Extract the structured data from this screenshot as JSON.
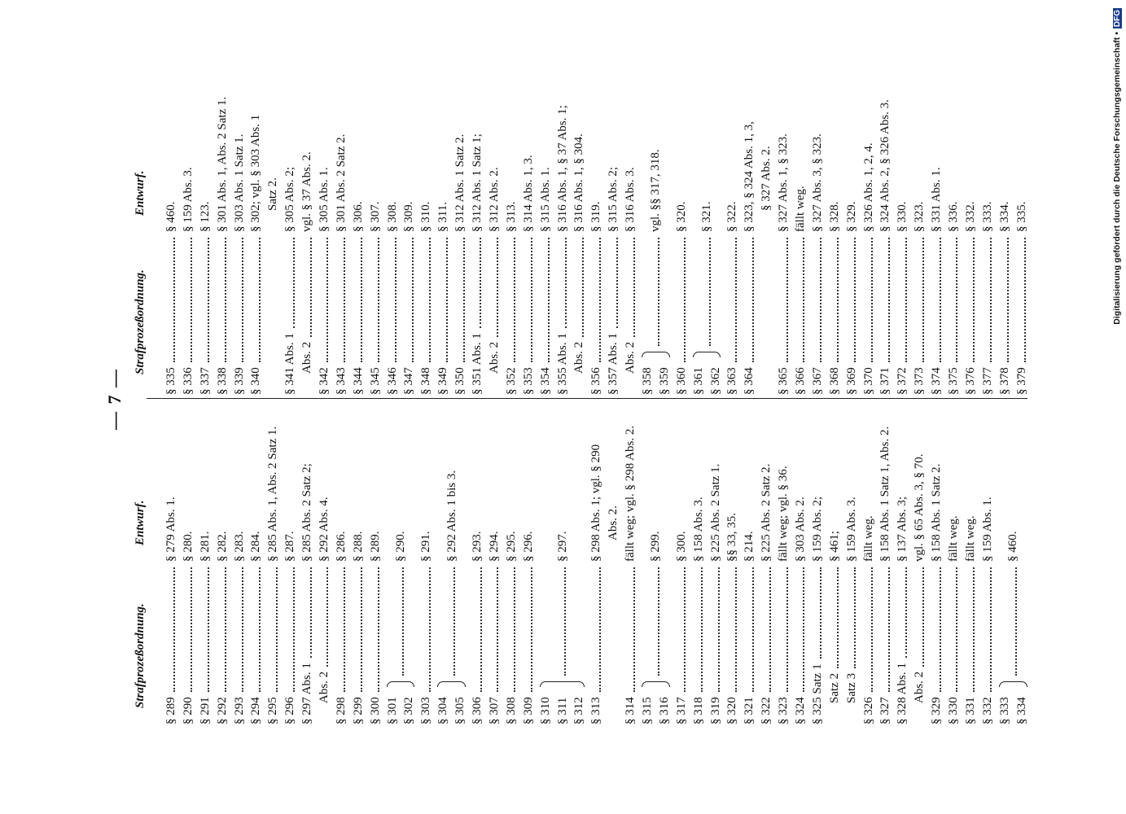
{
  "page_number": "— 7 —",
  "tables": [
    {
      "headers": [
        "Strafprozeßordnung.",
        "Entwurf."
      ],
      "rows": [
        {
          "spo": "§ 289",
          "entwurf": "§ 279 Abs. 1."
        },
        {
          "spo": "§ 290",
          "entwurf": "§ 280."
        },
        {
          "spo": "§ 291",
          "entwurf": "§ 281."
        },
        {
          "spo": "§ 292",
          "entwurf": "§ 282."
        },
        {
          "spo": "§ 293",
          "entwurf": "§ 283."
        },
        {
          "spo": "§ 294",
          "entwurf": "§ 284."
        },
        {
          "spo": "§ 295",
          "entwurf": "§ 285 Abs. 1, Abs. 2 Satz 1."
        },
        {
          "spo": "§ 296",
          "entwurf": "§ 287."
        },
        {
          "spo": "§ 297 Abs. 1",
          "entwurf": "§ 285 Abs. 2 Satz 2;"
        },
        {
          "spo": "Abs. 2",
          "entwurf": "§ 292 Abs. 4."
        },
        {
          "spo": "§ 298",
          "entwurf": "§ 286."
        },
        {
          "spo": "§ 299",
          "entwurf": "§ 288."
        },
        {
          "spo": "§ 300",
          "entwurf": "§ 289."
        },
        {
          "spo": [
            "§ 301",
            "§ 302"
          ],
          "entwurf": "§ 290."
        },
        {
          "spo": "§ 303",
          "entwurf": "§ 291."
        },
        {
          "spo": [
            "§ 304",
            "§ 305"
          ],
          "entwurf": "§ 292 Abs. 1 bis 3."
        },
        {
          "spo": "§ 306",
          "entwurf": "§ 293."
        },
        {
          "spo": "§ 307",
          "entwurf": "§ 294."
        },
        {
          "spo": "§ 308",
          "entwurf": "§ 295."
        },
        {
          "spo": "§ 309",
          "entwurf": "§ 296."
        },
        {
          "spo": [
            "§ 310",
            "§ 311",
            "§ 312"
          ],
          "entwurf": "§ 297."
        },
        {
          "spo": "§ 313",
          "entwurf": [
            "§ 298 Abs. 1; vgl. § 290",
            "Abs. 2."
          ]
        },
        {
          "spo": "§ 314",
          "entwurf": "fällt weg; vgl. § 298 Abs. 2."
        },
        {
          "spo": [
            "§ 315",
            "§ 316"
          ],
          "entwurf": "§ 299."
        },
        {
          "spo": "§ 317",
          "entwurf": "§ 300."
        },
        {
          "spo": "§ 318",
          "entwurf": "§ 158 Abs. 3."
        },
        {
          "spo": "§ 319",
          "entwurf": "§ 225 Abs. 2 Satz 1."
        },
        {
          "spo": "§ 320",
          "entwurf": "§§ 33, 35."
        },
        {
          "spo": "§ 321",
          "entwurf": "§ 214."
        },
        {
          "spo": "§ 322",
          "entwurf": "§ 225 Abs. 2 Satz 2."
        },
        {
          "spo": "§ 323",
          "entwurf": "fällt weg; vgl. § 36."
        },
        {
          "spo": "§ 324",
          "entwurf": "§ 303 Abs. 2."
        },
        {
          "spo": "§ 325 Satz 1",
          "entwurf": "§ 159 Abs. 2;"
        },
        {
          "spo": "Satz 2",
          "entwurf": "§ 461;"
        },
        {
          "spo": "Satz 3",
          "entwurf": "§ 159 Abs. 3."
        },
        {
          "spo": "§ 326",
          "entwurf": "fällt weg."
        },
        {
          "spo": "§ 327",
          "entwurf": "§ 158 Abs. 1 Satz 1, Abs. 2."
        },
        {
          "spo": "§ 328 Abs. 1",
          "entwurf": "§ 137 Abs. 3;"
        },
        {
          "spo": "Abs. 2",
          "entwurf": "vgl. § 65 Abs. 3, § 70."
        },
        {
          "spo": "§ 329",
          "entwurf": "§ 158 Abs. 1 Satz 2."
        },
        {
          "spo": "§ 330",
          "entwurf": "fällt weg."
        },
        {
          "spo": "§ 331",
          "entwurf": "fällt weg."
        },
        {
          "spo": "§ 332",
          "entwurf": "§ 159 Abs. 1."
        },
        {
          "spo": [
            "§ 333",
            "§ 334"
          ],
          "entwurf": "§ 460."
        }
      ]
    },
    {
      "headers": [
        "Strafprozeßordnung.",
        "Entwurf."
      ],
      "rows": [
        {
          "spo": "§ 335",
          "entwurf": "§ 460."
        },
        {
          "spo": "§ 336",
          "entwurf": "§ 159 Abs. 3."
        },
        {
          "spo": "§ 337",
          "entwurf": "§ 123."
        },
        {
          "spo": "§ 338",
          "entwurf": "§ 301 Abs. 1, Abs. 2 Satz 1."
        },
        {
          "spo": "§ 339",
          "entwurf": "§ 303 Abs. 1 Satz 1."
        },
        {
          "spo": "§ 340",
          "entwurf": [
            "§ 302; vgl. § 303 Abs. 1",
            "Satz 2."
          ]
        },
        {
          "spo": "§ 341 Abs. 1",
          "entwurf": "§ 305 Abs. 2;"
        },
        {
          "spo": "Abs. 2",
          "entwurf": "vgl. § 37 Abs. 2."
        },
        {
          "spo": "§ 342",
          "entwurf": "§ 305 Abs. 1."
        },
        {
          "spo": "§ 343",
          "entwurf": "§ 301 Abs. 2 Satz 2."
        },
        {
          "spo": "§ 344",
          "entwurf": "§ 306."
        },
        {
          "spo": "§ 345",
          "entwurf": "§ 307."
        },
        {
          "spo": "§ 346",
          "entwurf": "§ 308."
        },
        {
          "spo": "§ 347",
          "entwurf": "§ 309."
        },
        {
          "spo": "§ 348",
          "entwurf": "§ 310."
        },
        {
          "spo": "§ 349",
          "entwurf": "§ 311."
        },
        {
          "spo": "§ 350",
          "entwurf": "§ 312 Abs. 1 Satz 2."
        },
        {
          "spo": "§ 351 Abs. 1",
          "entwurf": "§ 312 Abs. 1 Satz 1;"
        },
        {
          "spo": "Abs. 2",
          "entwurf": "§ 312 Abs. 2."
        },
        {
          "spo": "§ 352",
          "entwurf": "§ 313."
        },
        {
          "spo": "§ 353",
          "entwurf": "§ 314 Abs. 1, 3."
        },
        {
          "spo": "§ 354",
          "entwurf": "§ 315 Abs. 1."
        },
        {
          "spo": "§ 355 Abs. 1",
          "entwurf": "§ 316 Abs. 1, § 37 Abs. 1;"
        },
        {
          "spo": "Abs. 2",
          "entwurf": "§ 316 Abs. 1, § 304."
        },
        {
          "spo": "§ 356",
          "entwurf": "§ 319."
        },
        {
          "spo": "§ 357 Abs. 1",
          "entwurf": "§ 315 Abs. 2;"
        },
        {
          "spo": "Abs. 2",
          "entwurf": "§ 316 Abs. 3."
        },
        {
          "spo": [
            "§ 358",
            "§ 359"
          ],
          "entwurf": "vgl. §§ 317, 318."
        },
        {
          "spo": "§ 360",
          "entwurf": "§ 320."
        },
        {
          "spo": [
            "§ 361",
            "§ 362"
          ],
          "entwurf": "§ 321."
        },
        {
          "spo": "§ 363",
          "entwurf": "§ 322."
        },
        {
          "spo": "§ 364",
          "entwurf": [
            "§ 323, § 324 Abs. 1, 3,",
            "§ 327 Abs. 2."
          ]
        },
        {
          "spo": "§ 365",
          "entwurf": "§ 327 Abs. 1, § 323."
        },
        {
          "spo": "§ 366",
          "entwurf": "fällt weg."
        },
        {
          "spo": "§ 367",
          "entwurf": "§ 327 Abs. 3, § 323."
        },
        {
          "spo": "§ 368",
          "entwurf": "§ 328."
        },
        {
          "spo": "§ 369",
          "entwurf": "§ 329."
        },
        {
          "spo": "§ 370",
          "entwurf": "§ 326 Abs. 1, 2, 4."
        },
        {
          "spo": "§ 371",
          "entwurf": "§ 324 Abs. 2, § 326 Abs. 3."
        },
        {
          "spo": "§ 372",
          "entwurf": "§ 330."
        },
        {
          "spo": "§ 373",
          "entwurf": "§ 323."
        },
        {
          "spo": "§ 374",
          "entwurf": "§ 331 Abs. 1."
        },
        {
          "spo": "§ 375",
          "entwurf": "§ 336."
        },
        {
          "spo": "§ 376",
          "entwurf": "§ 332."
        },
        {
          "spo": "§ 377",
          "entwurf": "§ 333."
        },
        {
          "spo": "§ 378",
          "entwurf": "§ 334."
        },
        {
          "spo": "§ 379",
          "entwurf": "§ 335."
        }
      ]
    }
  ],
  "footer": {
    "text": "Digitalisierung gefördert durch die Deutsche Forschungsgemeinschaft •",
    "logo": "DFG"
  }
}
